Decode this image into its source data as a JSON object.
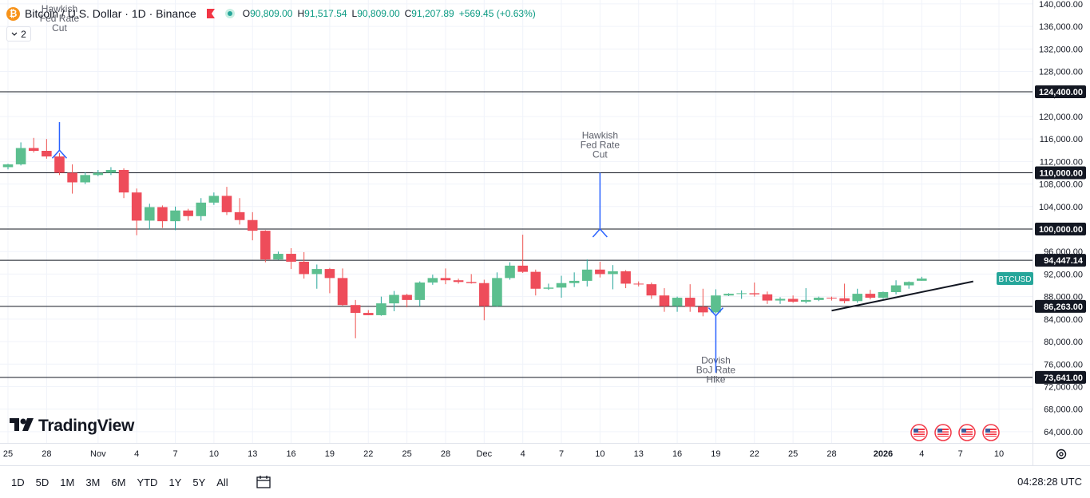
{
  "header": {
    "symbol_badge": "₿",
    "title": "Bitcoin / U.S. Dollar · 1D · Binance",
    "ohlc": {
      "o_label": "O",
      "o": "90,809.00",
      "h_label": "H",
      "h": "91,517.54",
      "l_label": "L",
      "l": "90,809.00",
      "c_label": "C",
      "c": "91,207.89",
      "change": "+569.45 (+0.63%)"
    },
    "indicator_count": "2"
  },
  "logo_text": "TradingView",
  "colors": {
    "up": "#26a69a",
    "down": "#ef5350",
    "upBody": "#5cbf8f",
    "downBody": "#ee4c5a",
    "line": "#131722",
    "arrow": "#2962ff",
    "grid": "#f0f3fa"
  },
  "timeframes": [
    "1D",
    "5D",
    "1M",
    "3M",
    "6M",
    "YTD",
    "1Y",
    "5Y",
    "All"
  ],
  "utc_time": "04:28:28 UTC",
  "chart_data": {
    "type": "candlestick",
    "y_axis": {
      "min": 62000,
      "max": 140700,
      "ticks": [
        64000,
        68000,
        72000,
        76000,
        80000,
        84000,
        88000,
        92000,
        96000,
        100000,
        104000,
        108000,
        112000,
        116000,
        120000,
        124000,
        128000,
        132000,
        136000,
        140000
      ]
    },
    "y_tick_labels": [
      "64,000.00",
      "68,000.00",
      "72,000.00",
      "76,000.00",
      "80,000.00",
      "84,000.00",
      "88,000.00",
      "92,000.00",
      "96,000.00",
      "100,000.00",
      "104,000.00",
      "108,000.00",
      "112,000.00",
      "116,000.00",
      "120,000.00",
      "124,000.00",
      "128,000.00",
      "132,000.00",
      "136,000.00",
      "140,000.00"
    ],
    "x_axis": {
      "start": "2025-10-25",
      "end": "2026-01-10",
      "ticks": [
        {
          "date": "2025-10-25",
          "label": "25"
        },
        {
          "date": "2025-10-28",
          "label": "28"
        },
        {
          "date": "2025-11-01",
          "label": "Nov"
        },
        {
          "date": "2025-11-04",
          "label": "4"
        },
        {
          "date": "2025-11-07",
          "label": "7"
        },
        {
          "date": "2025-11-10",
          "label": "10"
        },
        {
          "date": "2025-11-13",
          "label": "13"
        },
        {
          "date": "2025-11-16",
          "label": "16"
        },
        {
          "date": "2025-11-19",
          "label": "19"
        },
        {
          "date": "2025-11-22",
          "label": "22"
        },
        {
          "date": "2025-11-25",
          "label": "25"
        },
        {
          "date": "2025-11-28",
          "label": "28"
        },
        {
          "date": "2025-12-01",
          "label": "Dec"
        },
        {
          "date": "2025-12-04",
          "label": "4"
        },
        {
          "date": "2025-12-07",
          "label": "7"
        },
        {
          "date": "2025-12-10",
          "label": "10"
        },
        {
          "date": "2025-12-13",
          "label": "13"
        },
        {
          "date": "2025-12-16",
          "label": "16"
        },
        {
          "date": "2025-12-19",
          "label": "19"
        },
        {
          "date": "2025-12-22",
          "label": "22"
        },
        {
          "date": "2025-12-25",
          "label": "25"
        },
        {
          "date": "2025-12-28",
          "label": "28"
        },
        {
          "date": "2026-01-01",
          "label": "2026"
        },
        {
          "date": "2026-01-04",
          "label": "4"
        },
        {
          "date": "2026-01-07",
          "label": "7"
        },
        {
          "date": "2026-01-10",
          "label": "10"
        }
      ]
    },
    "candles": [
      {
        "date": "2025-10-25",
        "o": 111000,
        "h": 111600,
        "l": 110600,
        "c": 111500
      },
      {
        "date": "2025-10-26",
        "o": 111500,
        "h": 115400,
        "l": 111300,
        "c": 114400
      },
      {
        "date": "2025-10-27",
        "o": 114400,
        "h": 116200,
        "l": 113600,
        "c": 113900
      },
      {
        "date": "2025-10-28",
        "o": 113900,
        "h": 116000,
        "l": 112500,
        "c": 112900
      },
      {
        "date": "2025-10-29",
        "o": 112900,
        "h": 113500,
        "l": 109600,
        "c": 110000
      },
      {
        "date": "2025-10-30",
        "o": 110000,
        "h": 111500,
        "l": 106300,
        "c": 108300
      },
      {
        "date": "2025-10-31",
        "o": 108300,
        "h": 110100,
        "l": 108000,
        "c": 109600
      },
      {
        "date": "2025-11-01",
        "o": 109600,
        "h": 110500,
        "l": 109400,
        "c": 110000
      },
      {
        "date": "2025-11-02",
        "o": 110000,
        "h": 111000,
        "l": 109600,
        "c": 110500
      },
      {
        "date": "2025-11-03",
        "o": 110500,
        "h": 110800,
        "l": 105500,
        "c": 106500
      },
      {
        "date": "2025-11-04",
        "o": 106500,
        "h": 107200,
        "l": 98900,
        "c": 101500
      },
      {
        "date": "2025-11-05",
        "o": 101500,
        "h": 104500,
        "l": 99900,
        "c": 103900
      },
      {
        "date": "2025-11-06",
        "o": 103900,
        "h": 104200,
        "l": 100200,
        "c": 101400
      },
      {
        "date": "2025-11-07",
        "o": 101400,
        "h": 104000,
        "l": 99800,
        "c": 103300
      },
      {
        "date": "2025-11-08",
        "o": 103300,
        "h": 103600,
        "l": 101500,
        "c": 102300
      },
      {
        "date": "2025-11-09",
        "o": 102300,
        "h": 105500,
        "l": 101500,
        "c": 104700
      },
      {
        "date": "2025-11-10",
        "o": 104700,
        "h": 106500,
        "l": 104300,
        "c": 105900
      },
      {
        "date": "2025-11-11",
        "o": 105900,
        "h": 107500,
        "l": 102500,
        "c": 103000
      },
      {
        "date": "2025-11-12",
        "o": 103000,
        "h": 105500,
        "l": 100800,
        "c": 101600
      },
      {
        "date": "2025-11-13",
        "o": 101600,
        "h": 103000,
        "l": 98000,
        "c": 99700
      },
      {
        "date": "2025-11-14",
        "o": 99700,
        "h": 99800,
        "l": 94100,
        "c": 94600
      },
      {
        "date": "2025-11-15",
        "o": 94600,
        "h": 96000,
        "l": 94500,
        "c": 95600
      },
      {
        "date": "2025-11-16",
        "o": 95600,
        "h": 96600,
        "l": 92900,
        "c": 94200
      },
      {
        "date": "2025-11-17",
        "o": 94200,
        "h": 95900,
        "l": 91200,
        "c": 92000
      },
      {
        "date": "2025-11-18",
        "o": 92000,
        "h": 93700,
        "l": 89400,
        "c": 92900
      },
      {
        "date": "2025-11-19",
        "o": 92900,
        "h": 93100,
        "l": 88600,
        "c": 91300
      },
      {
        "date": "2025-11-20",
        "o": 91300,
        "h": 93000,
        "l": 86400,
        "c": 86500
      },
      {
        "date": "2025-11-21",
        "o": 86500,
        "h": 87400,
        "l": 80600,
        "c": 85100
      },
      {
        "date": "2025-11-22",
        "o": 85100,
        "h": 85600,
        "l": 84700,
        "c": 84700
      },
      {
        "date": "2025-11-23",
        "o": 84700,
        "h": 88000,
        "l": 84600,
        "c": 86800
      },
      {
        "date": "2025-11-24",
        "o": 86800,
        "h": 89000,
        "l": 85400,
        "c": 88300
      },
      {
        "date": "2025-11-25",
        "o": 88300,
        "h": 88500,
        "l": 86100,
        "c": 87400
      },
      {
        "date": "2025-11-26",
        "o": 87400,
        "h": 90700,
        "l": 86300,
        "c": 90500
      },
      {
        "date": "2025-11-27",
        "o": 90500,
        "h": 91900,
        "l": 90100,
        "c": 91300
      },
      {
        "date": "2025-11-28",
        "o": 91300,
        "h": 93000,
        "l": 90200,
        "c": 90900
      },
      {
        "date": "2025-11-29",
        "o": 90900,
        "h": 91200,
        "l": 90300,
        "c": 90600
      },
      {
        "date": "2025-11-30",
        "o": 90600,
        "h": 92000,
        "l": 90300,
        "c": 90400
      },
      {
        "date": "2025-12-01",
        "o": 90400,
        "h": 91000,
        "l": 83800,
        "c": 86300
      },
      {
        "date": "2025-12-02",
        "o": 86300,
        "h": 92300,
        "l": 86200,
        "c": 91300
      },
      {
        "date": "2025-12-03",
        "o": 91300,
        "h": 94100,
        "l": 91000,
        "c": 93500
      },
      {
        "date": "2025-12-04",
        "o": 93500,
        "h": 99000,
        "l": 92200,
        "c": 92400
      },
      {
        "date": "2025-12-05",
        "o": 92400,
        "h": 92800,
        "l": 88200,
        "c": 89400
      },
      {
        "date": "2025-12-06",
        "o": 89400,
        "h": 90300,
        "l": 89200,
        "c": 89600
      },
      {
        "date": "2025-12-07",
        "o": 89600,
        "h": 91700,
        "l": 87800,
        "c": 90400
      },
      {
        "date": "2025-12-08",
        "o": 90400,
        "h": 92300,
        "l": 89700,
        "c": 90800
      },
      {
        "date": "2025-12-09",
        "o": 90800,
        "h": 94600,
        "l": 89800,
        "c": 92800
      },
      {
        "date": "2025-12-10",
        "o": 92800,
        "h": 94200,
        "l": 91400,
        "c": 92000
      },
      {
        "date": "2025-12-11",
        "o": 92000,
        "h": 93600,
        "l": 89300,
        "c": 92500
      },
      {
        "date": "2025-12-12",
        "o": 92500,
        "h": 92700,
        "l": 89500,
        "c": 90300
      },
      {
        "date": "2025-12-13",
        "o": 90300,
        "h": 90700,
        "l": 89800,
        "c": 90200
      },
      {
        "date": "2025-12-14",
        "o": 90200,
        "h": 90500,
        "l": 87600,
        "c": 88200
      },
      {
        "date": "2025-12-15",
        "o": 88200,
        "h": 89500,
        "l": 85300,
        "c": 86300
      },
      {
        "date": "2025-12-16",
        "o": 86300,
        "h": 88000,
        "l": 85300,
        "c": 87800
      },
      {
        "date": "2025-12-17",
        "o": 87800,
        "h": 90200,
        "l": 85300,
        "c": 86200
      },
      {
        "date": "2025-12-18",
        "o": 86200,
        "h": 89400,
        "l": 84500,
        "c": 85200
      },
      {
        "date": "2025-12-19",
        "o": 85200,
        "h": 89300,
        "l": 85000,
        "c": 88200
      },
      {
        "date": "2025-12-20",
        "o": 88200,
        "h": 88600,
        "l": 88100,
        "c": 88500
      },
      {
        "date": "2025-12-21",
        "o": 88500,
        "h": 89100,
        "l": 87600,
        "c": 88600
      },
      {
        "date": "2025-12-22",
        "o": 88600,
        "h": 90500,
        "l": 88000,
        "c": 88400
      },
      {
        "date": "2025-12-23",
        "o": 88400,
        "h": 88900,
        "l": 86700,
        "c": 87300
      },
      {
        "date": "2025-12-24",
        "o": 87300,
        "h": 87900,
        "l": 86700,
        "c": 87600
      },
      {
        "date": "2025-12-25",
        "o": 87600,
        "h": 88200,
        "l": 86900,
        "c": 87100
      },
      {
        "date": "2025-12-26",
        "o": 87100,
        "h": 89500,
        "l": 86800,
        "c": 87400
      },
      {
        "date": "2025-12-27",
        "o": 87400,
        "h": 88000,
        "l": 87200,
        "c": 87800
      },
      {
        "date": "2025-12-28",
        "o": 87800,
        "h": 88000,
        "l": 87300,
        "c": 87700
      },
      {
        "date": "2025-12-29",
        "o": 87700,
        "h": 90300,
        "l": 86800,
        "c": 87200
      },
      {
        "date": "2025-12-30",
        "o": 87200,
        "h": 89400,
        "l": 86900,
        "c": 88500
      },
      {
        "date": "2025-12-31",
        "o": 88500,
        "h": 89200,
        "l": 87500,
        "c": 87800
      },
      {
        "date": "2026-01-01",
        "o": 87800,
        "h": 88900,
        "l": 87600,
        "c": 88800
      },
      {
        "date": "2026-01-02",
        "o": 88800,
        "h": 90900,
        "l": 88400,
        "c": 90000
      },
      {
        "date": "2026-01-03",
        "o": 90000,
        "h": 90700,
        "l": 89400,
        "c": 90600
      },
      {
        "date": "2026-01-04",
        "o": 90809,
        "h": 91517.54,
        "l": 90809,
        "c": 91207.89
      }
    ],
    "horizontal_levels": [
      {
        "value": 124400,
        "label": "124,400.00"
      },
      {
        "value": 110000,
        "label": "110,000.00"
      },
      {
        "value": 100000,
        "label": "100,000.00"
      },
      {
        "value": 94447.14,
        "label": "94,447.14"
      },
      {
        "value": 86263,
        "label": "86,263.00"
      },
      {
        "value": 73641,
        "label": "73,641.00"
      }
    ],
    "trendline": {
      "from": {
        "date": "2025-12-28",
        "value": 85500
      },
      "to": {
        "date": "2026-01-08",
        "value": 90700
      }
    },
    "last_price_label": "BTCUSD",
    "last_price": 91207.89,
    "annotations": [
      {
        "lines": [
          "Hawkish",
          "Fed Rate",
          "Cut"
        ],
        "date": "2025-10-29",
        "arrow": "down",
        "text_top": 140000,
        "arrow_from": 119000,
        "arrow_to": 114000
      },
      {
        "lines": [
          "Hawkish",
          "Fed Rate",
          "Cut"
        ],
        "date": "2025-12-10",
        "arrow": "down",
        "text_top": 117500,
        "arrow_from": 110000,
        "arrow_to": 100000
      },
      {
        "lines": [
          "Dovish",
          "BoJ Rate",
          "Hike"
        ],
        "date": "2025-12-19",
        "arrow": "up",
        "text_top": 77500,
        "arrow_from": 74500,
        "arrow_to": 84600
      }
    ]
  }
}
